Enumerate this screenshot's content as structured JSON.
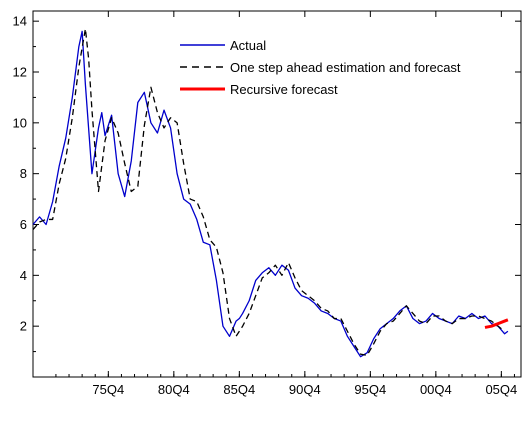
{
  "colors": {
    "actual": "#0000cc",
    "estimate": "#000000",
    "recursive": "#ff0000",
    "axis": "#000000"
  },
  "chart_data": {
    "type": "line",
    "title": "",
    "xlabel": "",
    "ylabel": "",
    "xlim": [
      1970.0,
      2007.25
    ],
    "ylim": [
      0.0,
      14.4
    ],
    "grid": false,
    "legend_position": "top-right",
    "x_ticks": [
      {
        "label": "75Q4",
        "x": 1975.75
      },
      {
        "label": "80Q4",
        "x": 1980.75
      },
      {
        "label": "85Q4",
        "x": 1985.75
      },
      {
        "label": "90Q4",
        "x": 1990.75
      },
      {
        "label": "95Q4",
        "x": 1995.75
      },
      {
        "label": "00Q4",
        "x": 2000.75
      },
      {
        "label": "05Q4",
        "x": 2005.75
      }
    ],
    "y_ticks": [
      {
        "label": "2",
        "y": 2
      },
      {
        "label": "4",
        "y": 4
      },
      {
        "label": "6",
        "y": 6
      },
      {
        "label": "8",
        "y": 8
      },
      {
        "label": "10",
        "y": 10
      },
      {
        "label": "12",
        "y": 12
      },
      {
        "label": "14",
        "y": 14
      }
    ],
    "series": [
      {
        "name": "Actual",
        "style": "solid",
        "x": [
          1970.0,
          1970.5,
          1971.0,
          1971.5,
          1972.0,
          1972.5,
          1973.0,
          1973.5,
          1973.75,
          1974.0,
          1974.5,
          1975.0,
          1975.25,
          1975.5,
          1976.0,
          1976.5,
          1977.0,
          1977.5,
          1978.0,
          1978.5,
          1979.0,
          1979.5,
          1980.0,
          1980.5,
          1981.0,
          1981.5,
          1982.0,
          1982.5,
          1983.0,
          1983.5,
          1984.0,
          1984.5,
          1985.0,
          1985.5,
          1985.75,
          1986.0,
          1986.5,
          1987.0,
          1987.5,
          1988.0,
          1988.5,
          1989.0,
          1989.5,
          1990.0,
          1990.5,
          1991.0,
          1991.5,
          1992.0,
          1992.5,
          1993.0,
          1993.5,
          1994.0,
          1994.5,
          1995.0,
          1995.5,
          1996.0,
          1996.5,
          1997.0,
          1997.5,
          1998.0,
          1998.5,
          1999.0,
          1999.5,
          2000.0,
          2000.5,
          2001.0,
          2001.5,
          2002.0,
          2002.5,
          2003.0,
          2003.5,
          2004.0,
          2004.5,
          2005.0,
          2005.5,
          2006.0,
          2006.25
        ],
        "values": [
          6.0,
          6.3,
          6.0,
          6.9,
          8.3,
          9.4,
          11.0,
          13.0,
          13.6,
          11.5,
          8.0,
          9.8,
          10.4,
          9.5,
          10.3,
          8.0,
          7.1,
          8.5,
          10.8,
          11.2,
          10.0,
          9.6,
          10.5,
          9.8,
          8.0,
          7.0,
          6.8,
          6.2,
          5.3,
          5.2,
          3.8,
          2.0,
          1.6,
          2.2,
          2.3,
          2.5,
          3.0,
          3.8,
          4.1,
          4.3,
          4.0,
          4.4,
          4.2,
          3.5,
          3.2,
          3.1,
          2.9,
          2.6,
          2.5,
          2.3,
          2.2,
          1.6,
          1.2,
          0.8,
          0.95,
          1.5,
          1.9,
          2.1,
          2.3,
          2.6,
          2.8,
          2.3,
          2.1,
          2.2,
          2.5,
          2.3,
          2.2,
          2.1,
          2.4,
          2.3,
          2.5,
          2.3,
          2.4,
          2.1,
          2.0,
          1.7,
          1.8
        ]
      },
      {
        "name": "One step ahead estimation and forecast",
        "style": "dashed",
        "x": [
          1970.0,
          1970.5,
          1971.0,
          1971.5,
          1972.0,
          1972.5,
          1973.0,
          1973.5,
          1974.0,
          1974.25,
          1974.5,
          1975.0,
          1975.5,
          1976.0,
          1976.5,
          1977.0,
          1977.5,
          1978.0,
          1978.5,
          1979.0,
          1979.5,
          1980.0,
          1980.5,
          1981.0,
          1981.5,
          1982.0,
          1982.5,
          1983.0,
          1983.5,
          1984.0,
          1984.5,
          1985.0,
          1985.5,
          1986.0,
          1986.5,
          1987.0,
          1987.5,
          1988.0,
          1988.5,
          1989.0,
          1989.5,
          1990.0,
          1990.5,
          1991.0,
          1991.5,
          1992.0,
          1992.5,
          1993.0,
          1993.5,
          1994.0,
          1994.5,
          1995.0,
          1995.5,
          1996.0,
          1996.5,
          1997.0,
          1997.5,
          1998.0,
          1998.5,
          1999.0,
          1999.5,
          2000.0,
          2000.5,
          2001.0,
          2001.5,
          2002.0,
          2002.5,
          2003.0,
          2003.5,
          2004.0,
          2004.5,
          2005.0,
          2005.5,
          2006.0
        ],
        "values": [
          5.8,
          6.1,
          6.2,
          6.2,
          7.6,
          8.6,
          10.2,
          12.2,
          13.7,
          12.5,
          10.5,
          7.3,
          9.3,
          10.2,
          9.6,
          8.4,
          7.3,
          7.5,
          9.9,
          11.4,
          10.4,
          9.8,
          10.2,
          10.0,
          8.4,
          7.0,
          6.9,
          6.3,
          5.4,
          5.1,
          4.1,
          2.3,
          1.6,
          2.0,
          2.5,
          3.2,
          3.9,
          4.1,
          4.4,
          4.0,
          4.5,
          3.9,
          3.4,
          3.2,
          3.0,
          2.7,
          2.6,
          2.3,
          2.3,
          1.8,
          1.3,
          0.9,
          0.85,
          1.3,
          1.8,
          2.1,
          2.2,
          2.5,
          2.8,
          2.5,
          2.2,
          2.1,
          2.4,
          2.4,
          2.2,
          2.1,
          2.3,
          2.3,
          2.4,
          2.4,
          2.3,
          2.2,
          2.0,
          1.8
        ]
      },
      {
        "name": "Recursive forecast",
        "style": "solid-thick",
        "x": [
          2004.5,
          2005.0,
          2005.5,
          2006.0,
          2006.25
        ],
        "values": [
          1.95,
          2.0,
          2.1,
          2.2,
          2.25
        ]
      }
    ]
  }
}
